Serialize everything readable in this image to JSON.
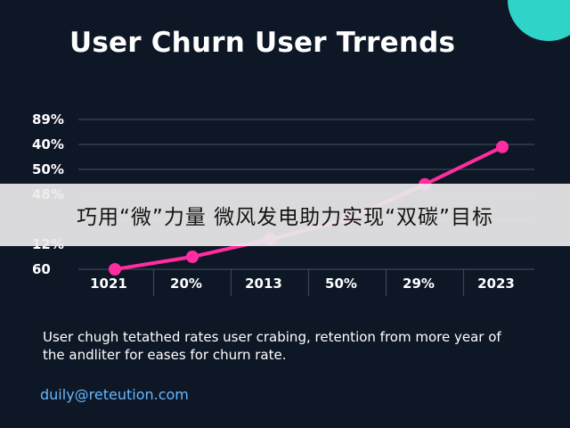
{
  "title": "User Churn User Trrends",
  "chart_data": {
    "type": "line",
    "title": "User Churn User Trrends",
    "y_tick_labels": [
      "89%",
      "40%",
      "50%",
      "48%",
      "",
      "12%",
      "60"
    ],
    "categories": [
      "1021",
      "20%",
      "2013",
      "50%",
      "29%",
      "2023"
    ],
    "series": [
      {
        "values": [
          0.0,
          0.5,
          1.2,
          2.0,
          3.4,
          4.9
        ],
        "color": "#ff2da0"
      }
    ],
    "ylim": [
      0,
      6
    ],
    "grid": true,
    "legend": "none"
  },
  "caption": "User chugh tetathed rates user crabing, retention from more year of the andliter for eases for churn rate.",
  "email": "duily@reteution.com",
  "banner_text": "巧用“微”力量 微风发电助力实现“双碳”目标",
  "colors": {
    "background": "#0e1726",
    "line": "#ff2da0",
    "accent_blob": "#2fd3c8",
    "banner": "#ececec",
    "link": "#66b8ff"
  }
}
